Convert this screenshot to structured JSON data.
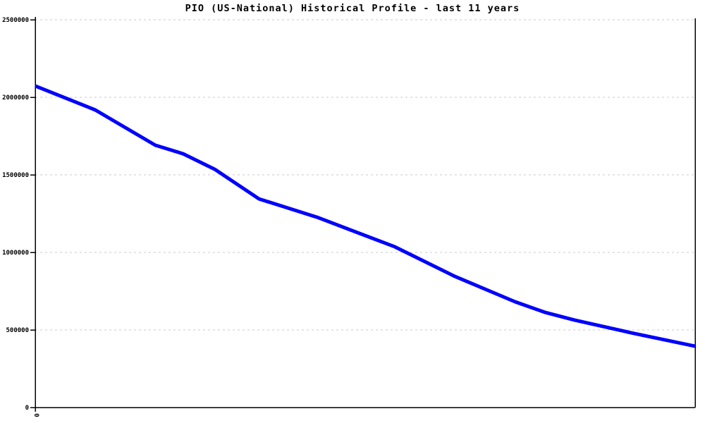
{
  "chart_data": {
    "type": "line",
    "title": "PIO (US-National) Historical Profile - last 11 years",
    "xlabel": "",
    "ylabel": "",
    "ylim": [
      0,
      2500000
    ],
    "y_ticks": [
      0,
      500000,
      1000000,
      1500000,
      2000000,
      2500000
    ],
    "y_tick_labels": [
      "0",
      "500000",
      "1000000",
      "1500000",
      "2000000",
      "2500000"
    ],
    "x_axis": {
      "visible_labels": [
        "0"
      ],
      "label_rotation_deg": 90
    },
    "grid": "horizontal-dashed",
    "legend": "none",
    "colors": {
      "line": "#0000ff",
      "grid": "#c8c8c8",
      "axis": "#000000",
      "text": "#000000",
      "background": "#ffffff"
    },
    "series": [
      {
        "name": "PIO",
        "color": "#0000ff",
        "points": [
          {
            "x": 0.0,
            "y": 2073000
          },
          {
            "x": 0.091,
            "y": 1918000
          },
          {
            "x": 0.182,
            "y": 1691000
          },
          {
            "x": 0.224,
            "y": 1636000
          },
          {
            "x": 0.272,
            "y": 1536000
          },
          {
            "x": 0.339,
            "y": 1345000
          },
          {
            "x": 0.427,
            "y": 1227000
          },
          {
            "x": 0.545,
            "y": 1036000
          },
          {
            "x": 0.636,
            "y": 845000
          },
          {
            "x": 0.727,
            "y": 682000
          },
          {
            "x": 0.772,
            "y": 614000
          },
          {
            "x": 0.817,
            "y": 564000
          },
          {
            "x": 0.908,
            "y": 477000
          },
          {
            "x": 1.0,
            "y": 395000
          }
        ]
      }
    ]
  }
}
